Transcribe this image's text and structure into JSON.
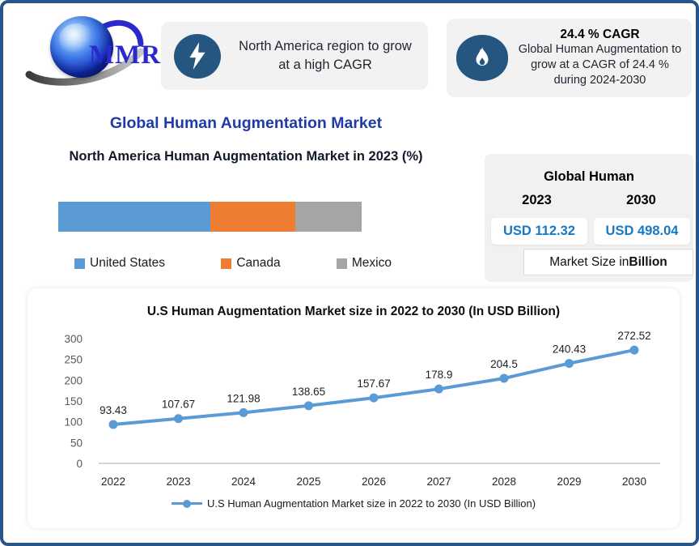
{
  "logo": {
    "text": "MMR"
  },
  "callouts": [
    {
      "icon": "lightning-icon",
      "text": "North America region to grow at a high CAGR"
    },
    {
      "icon": "flame-icon",
      "heading": "24.4 % CAGR",
      "text": "Global Human Augmentation to grow at a CAGR of 24.4 % during 2024-2030"
    }
  ],
  "title": "Global Human Augmentation Market",
  "market_panel": {
    "heading": "Global Human",
    "year_left": "2023",
    "year_right": "2030",
    "value_left": "USD 112.32",
    "value_right": "USD 498.04",
    "note_prefix": "Market Size in ",
    "note_bold": "Billion",
    "value_color": "#1779C4"
  },
  "chart_data": [
    {
      "type": "bar",
      "subtype": "horizontal-stacked",
      "title": "North America Human Augmentation Market in 2023 (%)",
      "categories": [
        "United States",
        "Canada",
        "Mexico"
      ],
      "values": [
        50,
        28,
        22
      ],
      "unit": "% share",
      "colors": [
        "#5B9BD5",
        "#ED7D31",
        "#A5A5A5"
      ],
      "legend_position": "bottom"
    },
    {
      "type": "line",
      "title": "U.S Human Augmentation Market size in 2022 to 2030 (In USD Billion)",
      "x": [
        "2022",
        "2023",
        "2024",
        "2025",
        "2026",
        "2027",
        "2028",
        "2029",
        "2030"
      ],
      "values": [
        93.43,
        107.67,
        121.98,
        138.65,
        157.67,
        178.9,
        204.5,
        240.43,
        272.52
      ],
      "ylim": [
        0,
        300
      ],
      "yticks": [
        0,
        50,
        100,
        150,
        200,
        250,
        300
      ],
      "grid": false,
      "line_color": "#5B9BD5",
      "legend": [
        "U.S Human Augmentation Market size in 2022 to 2030 (In USD Billion)"
      ],
      "legend_position": "bottom"
    }
  ]
}
